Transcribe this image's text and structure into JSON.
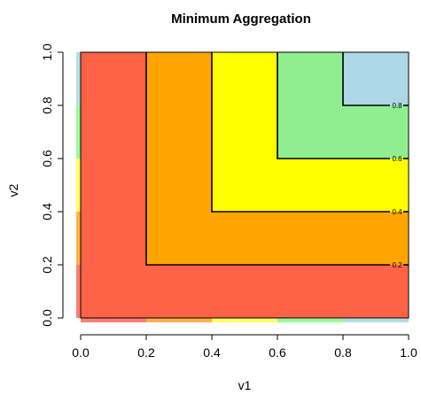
{
  "chart_data": {
    "type": "contour",
    "title": "Minimum Aggregation",
    "xlabel": "v1",
    "ylabel": "v2",
    "xlim": [
      0,
      1
    ],
    "ylim": [
      0,
      1
    ],
    "x_ticks": [
      "0.0",
      "0.2",
      "0.4",
      "0.6",
      "0.8",
      "1.0"
    ],
    "y_ticks": [
      "0.0",
      "0.2",
      "0.4",
      "0.6",
      "0.8",
      "1.0"
    ],
    "function": "min(v1, v2)",
    "fill_bands": [
      {
        "from": 0.0,
        "to": 0.2,
        "color": "#FF6347"
      },
      {
        "from": 0.2,
        "to": 0.4,
        "color": "#FFA500"
      },
      {
        "from": 0.4,
        "to": 0.6,
        "color": "#FFFF00"
      },
      {
        "from": 0.6,
        "to": 0.8,
        "color": "#90EE90"
      },
      {
        "from": 0.8,
        "to": 1.0,
        "color": "#ADD8E6"
      }
    ],
    "contour_levels": [
      {
        "level": 0.2,
        "label": "0.2"
      },
      {
        "level": 0.4,
        "label": "0.4"
      },
      {
        "level": 0.6,
        "label": "0.6"
      },
      {
        "level": 0.8,
        "label": "0.8"
      }
    ],
    "legend_colors": [
      "#FA8072",
      "#FFB347",
      "#FFFF66",
      "#98FB98",
      "#B0E0E6"
    ]
  }
}
